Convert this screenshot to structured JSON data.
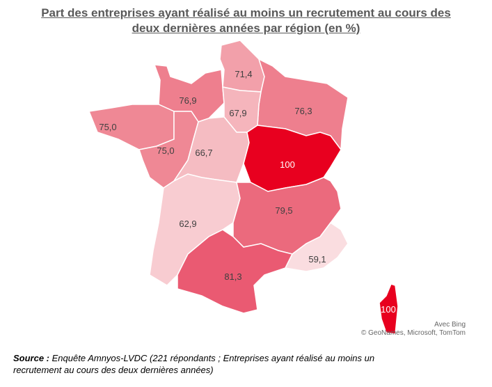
{
  "title_line1": "Part des entreprises ayant réalisé au moins un recrutement au cours des",
  "title_line2": "deux dernières années par région (en %)",
  "map": {
    "type": "choropleth",
    "scale": {
      "low_color": "#fadde0",
      "high_color": "#e8001f"
    },
    "regions": [
      {
        "value": "71,4",
        "color": "#f2a0aa"
      },
      {
        "value": "76,9",
        "color": "#ee7f8e"
      },
      {
        "value": "76,3",
        "color": "#ee7f8e"
      },
      {
        "value": "67,9",
        "color": "#f5b5bc"
      },
      {
        "value": "75,0",
        "color": "#ef8895"
      },
      {
        "value": "75,0",
        "color": "#ef8895"
      },
      {
        "value": "66,7",
        "color": "#f5bcc2"
      },
      {
        "value": "100",
        "color": "#e8001f"
      },
      {
        "value": "62,9",
        "color": "#f8ccd1"
      },
      {
        "value": "79,5",
        "color": "#eb6a7d"
      },
      {
        "value": "81,3",
        "color": "#ea5a72"
      },
      {
        "value": "59,1",
        "color": "#fadde0"
      },
      {
        "value": "100",
        "color": "#e8001f"
      }
    ]
  },
  "attribution_line1": "Avec Bing",
  "attribution_line2": "© GeoNames, Microsoft, TomTom",
  "source_label": "Source :",
  "source_text": " Enquête Amnyos-LVDC (221 répondants ; Entreprises ayant réalisé au moins un recrutement au cours des deux dernières années)"
}
